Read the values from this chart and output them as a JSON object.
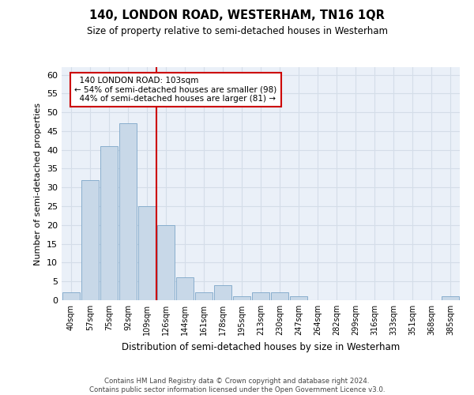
{
  "title": "140, LONDON ROAD, WESTERHAM, TN16 1QR",
  "subtitle": "Size of property relative to semi-detached houses in Westerham",
  "xlabel": "Distribution of semi-detached houses by size in Westerham",
  "ylabel": "Number of semi-detached properties",
  "bar_labels": [
    "40sqm",
    "57sqm",
    "75sqm",
    "92sqm",
    "109sqm",
    "126sqm",
    "144sqm",
    "161sqm",
    "178sqm",
    "195sqm",
    "213sqm",
    "230sqm",
    "247sqm",
    "264sqm",
    "282sqm",
    "299sqm",
    "316sqm",
    "333sqm",
    "351sqm",
    "368sqm",
    "385sqm"
  ],
  "bar_values": [
    2,
    32,
    41,
    47,
    25,
    20,
    6,
    2,
    4,
    1,
    2,
    2,
    1,
    0,
    0,
    0,
    0,
    0,
    0,
    0,
    1
  ],
  "bar_color": "#c8d8e8",
  "bar_edge_color": "#7ca6c8",
  "ylim": [
    0,
    62
  ],
  "yticks": [
    0,
    5,
    10,
    15,
    20,
    25,
    30,
    35,
    40,
    45,
    50,
    55,
    60
  ],
  "property_label": "140 LONDON ROAD: 103sqm",
  "pct_smaller": 54,
  "count_smaller": 98,
  "pct_larger": 44,
  "count_larger": 81,
  "redline_x": 4.5,
  "annotation_box_color": "#ffffff",
  "annotation_box_edge": "#cc0000",
  "footer_line1": "Contains HM Land Registry data © Crown copyright and database right 2024.",
  "footer_line2": "Contains public sector information licensed under the Open Government Licence v3.0.",
  "grid_color": "#d4dde8",
  "background_color": "#eaf0f8"
}
